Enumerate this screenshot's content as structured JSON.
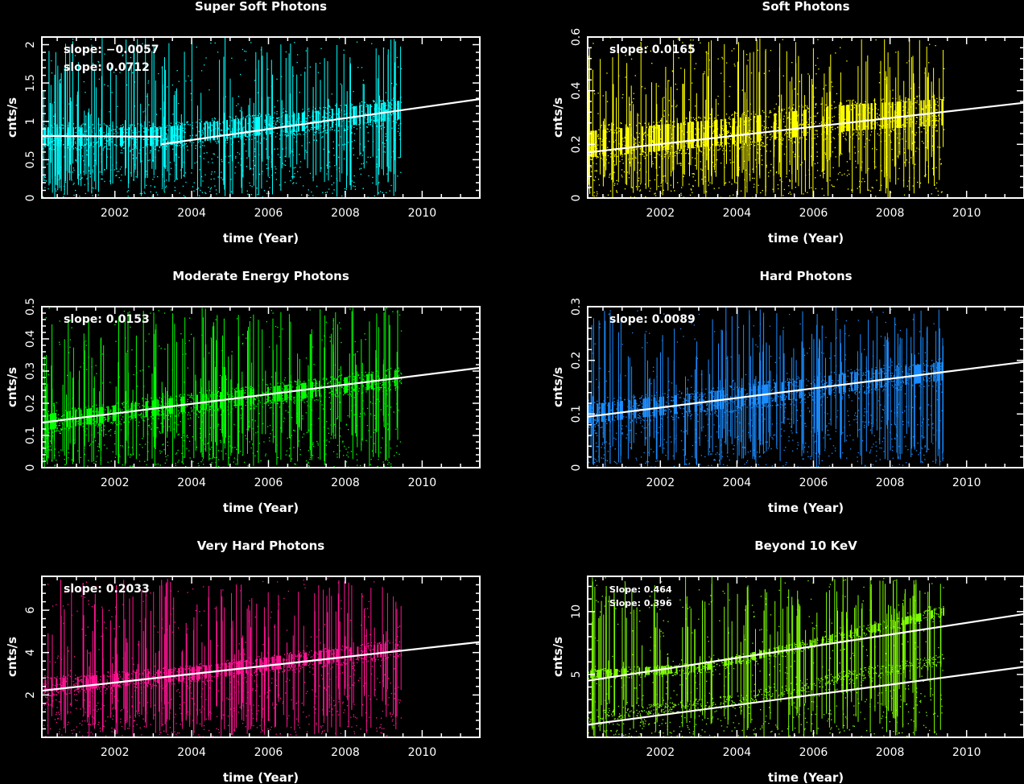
{
  "chart_data": [
    {
      "type": "scatter",
      "title": "Super Soft Photons",
      "xlabel": "time (Year)",
      "ylabel": "cnts/s",
      "xlim": [
        2000.1,
        2011.5
      ],
      "ylim": [
        0,
        2.1
      ],
      "x_ticks": [
        2002,
        2004,
        2006,
        2008,
        2010
      ],
      "y_ticks": [
        0,
        0.5,
        1,
        1.5,
        2
      ],
      "grid": false,
      "color": "#00ffff",
      "annotations": [
        "slope: −0.0057",
        "slope: 0.0712"
      ],
      "data_end": 2009.45,
      "band": [
        [
          2000.1,
          0.8
        ],
        [
          2003.2,
          0.8
        ],
        [
          2005.0,
          0.9
        ],
        [
          2007.0,
          1.0
        ],
        [
          2009.45,
          1.15
        ]
      ],
      "spread": 0.35,
      "fit_lines": [
        {
          "x": [
            2000.1,
            2003.2
          ],
          "y": [
            0.81,
            0.8
          ]
        },
        {
          "x": [
            2003.2,
            2011.5
          ],
          "y": [
            0.7,
            1.29
          ]
        }
      ]
    },
    {
      "type": "scatter",
      "title": "Soft Photons",
      "xlabel": "time (Year)",
      "ylabel": "cnts/s",
      "xlim": [
        2000.1,
        2011.5
      ],
      "ylim": [
        0,
        0.6
      ],
      "x_ticks": [
        2002,
        2004,
        2006,
        2008,
        2010
      ],
      "y_ticks": [
        0,
        0.2,
        0.4,
        0.6
      ],
      "grid": false,
      "color": "#ffff00",
      "annotations": [
        "slope: 0.0165"
      ],
      "data_end": 2009.4,
      "band": [
        [
          2000.1,
          0.2
        ],
        [
          2004.0,
          0.25
        ],
        [
          2007.0,
          0.3
        ],
        [
          2009.4,
          0.32
        ]
      ],
      "spread": 0.14,
      "fit_lines": [
        {
          "x": [
            2000.1,
            2011.5
          ],
          "y": [
            0.17,
            0.355
          ]
        }
      ]
    },
    {
      "type": "scatter",
      "title": "Moderate Energy Photons",
      "xlabel": "time (Year)",
      "ylabel": "cnts/s",
      "xlim": [
        2000.1,
        2011.5
      ],
      "ylim": [
        0,
        0.5
      ],
      "x_ticks": [
        2002,
        2004,
        2006,
        2008,
        2010
      ],
      "y_ticks": [
        0,
        0.1,
        0.2,
        0.3,
        0.4,
        0.5
      ],
      "grid": false,
      "color": "#00ff00",
      "annotations": [
        "slope: 0.0153"
      ],
      "data_end": 2009.45,
      "band": [
        [
          2000.1,
          0.14
        ],
        [
          2004.0,
          0.2
        ],
        [
          2007.0,
          0.24
        ],
        [
          2009.45,
          0.28
        ]
      ],
      "spread": 0.07,
      "fit_lines": [
        {
          "x": [
            2000.1,
            2011.5
          ],
          "y": [
            0.14,
            0.31
          ]
        }
      ]
    },
    {
      "type": "scatter",
      "title": "Hard Photons",
      "xlabel": "time (Year)",
      "ylabel": "cnts/s",
      "xlim": [
        2000.1,
        2011.5
      ],
      "ylim": [
        0,
        0.3
      ],
      "x_ticks": [
        2002,
        2004,
        2006,
        2008,
        2010
      ],
      "y_ticks": [
        0,
        0.1,
        0.2,
        0.3
      ],
      "grid": false,
      "color": "#1a8cff",
      "annotations": [
        "slope: 0.0089"
      ],
      "data_end": 2009.4,
      "band": [
        [
          2000.1,
          0.1
        ],
        [
          2004.0,
          0.13
        ],
        [
          2007.0,
          0.16
        ],
        [
          2009.4,
          0.18
        ]
      ],
      "spread": 0.05,
      "fit_lines": [
        {
          "x": [
            2000.1,
            2011.5
          ],
          "y": [
            0.095,
            0.197
          ]
        }
      ]
    },
    {
      "type": "scatter",
      "title": "Very Hard  Photons",
      "xlabel": "time (Year)",
      "ylabel": "cnts/s",
      "xlim": [
        2000.1,
        2011.5
      ],
      "ylim": [
        0,
        7.6
      ],
      "x_ticks": [
        2002,
        2004,
        2006,
        2008,
        2010
      ],
      "y_ticks": [
        2,
        4,
        6
      ],
      "grid": false,
      "color": "#ff1493",
      "annotations": [
        "slope: 0.2033"
      ],
      "data_end": 2009.45,
      "band": [
        [
          2000.1,
          2.4
        ],
        [
          2004.0,
          3.0
        ],
        [
          2007.0,
          3.7
        ],
        [
          2009.45,
          4.2
        ]
      ],
      "spread": 0.9,
      "fit_lines": [
        {
          "x": [
            2000.1,
            2011.5
          ],
          "y": [
            2.2,
            4.5
          ]
        }
      ]
    },
    {
      "type": "scatter",
      "title": "Beyond 10 KeV",
      "xlabel": "time (Year)",
      "ylabel": "cnts/s",
      "xlim": [
        2000.1,
        2011.5
      ],
      "ylim": [
        0,
        12.8
      ],
      "x_ticks": [
        2002,
        2004,
        2006,
        2008,
        2010
      ],
      "y_ticks": [
        5,
        10
      ],
      "grid": false,
      "color": "#7fff00",
      "annotations": [
        "Slope: 0.464",
        "Slope: 0.396"
      ],
      "data_end": 2009.4,
      "band": [
        [
          2000.1,
          5.0
        ],
        [
          2003.0,
          5.5
        ],
        [
          2006.0,
          7.5
        ],
        [
          2009.4,
          10.0
        ]
      ],
      "band2": [
        [
          2000.1,
          1.7
        ],
        [
          2004.0,
          3.0
        ],
        [
          2007.0,
          5.0
        ],
        [
          2009.4,
          6.2
        ]
      ],
      "spread": 0.9,
      "fit_lines": [
        {
          "x": [
            2000.1,
            2011.5
          ],
          "y": [
            4.5,
            9.8
          ]
        },
        {
          "x": [
            2000.1,
            2011.5
          ],
          "y": [
            1.0,
            5.6
          ]
        }
      ]
    }
  ]
}
